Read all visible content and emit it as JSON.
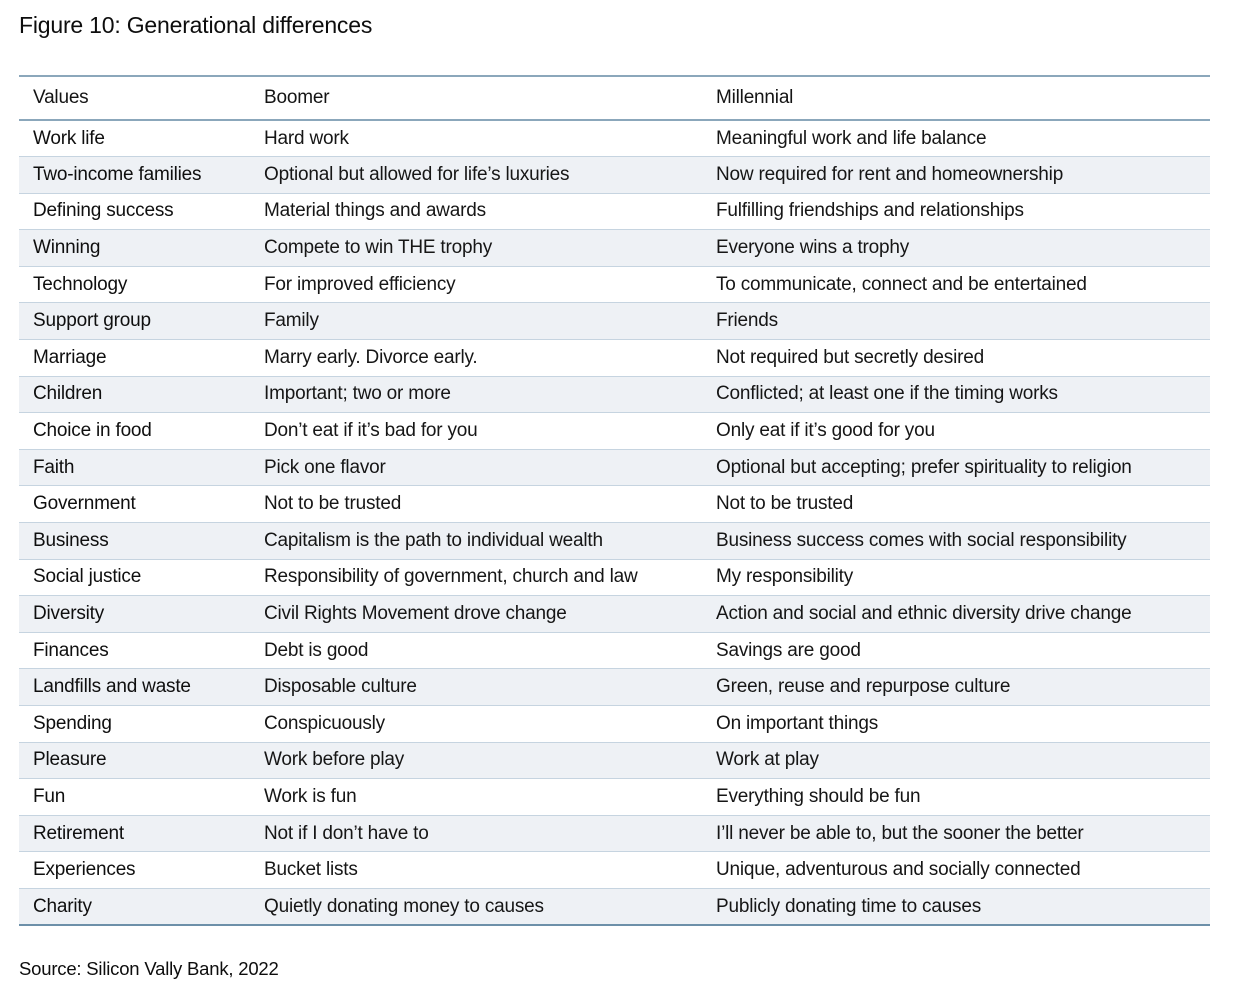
{
  "figure": {
    "title": "Figure 10: Generational differences",
    "source": "Source: Silicon Vally Bank, 2022"
  },
  "colors": {
    "row_stripe": "#eef1f5",
    "row_divider": "#c6d4e0",
    "outer_rule": "#8ba7bb",
    "bottom_rule": "#6d90a9",
    "text": "#161616"
  },
  "table": {
    "columns": [
      "Values",
      "Boomer",
      "Millennial"
    ],
    "rows": [
      {
        "value": "Work life",
        "boomer": "Hard work",
        "millennial": "Meaningful work and life balance"
      },
      {
        "value": "Two-income families",
        "boomer": "Optional but allowed for life’s luxuries",
        "millennial": "Now required for rent and homeownership"
      },
      {
        "value": "Defining success",
        "boomer": "Material things and awards",
        "millennial": "Fulfilling friendships and relationships"
      },
      {
        "value": "Winning",
        "boomer": "Compete to win THE trophy",
        "millennial": "Everyone wins a trophy"
      },
      {
        "value": "Technology",
        "boomer": "For improved efficiency",
        "millennial": "To communicate, connect and be entertained"
      },
      {
        "value": "Support group",
        "boomer": "Family",
        "millennial": "Friends"
      },
      {
        "value": "Marriage",
        "boomer": "Marry early. Divorce early.",
        "millennial": "Not required but secretly desired"
      },
      {
        "value": "Children",
        "boomer": "Important; two or more",
        "millennial": "Conflicted; at least one if the timing works"
      },
      {
        "value": "Choice in food",
        "boomer": "Don’t eat if it’s bad for you",
        "millennial": "Only eat if it’s good for you"
      },
      {
        "value": "Faith",
        "boomer": "Pick one flavor",
        "millennial": "Optional but accepting; prefer spirituality to religion"
      },
      {
        "value": "Government",
        "boomer": "Not to be trusted",
        "millennial": "Not to be trusted"
      },
      {
        "value": "Business",
        "boomer": "Capitalism is the path to individual wealth",
        "millennial": "Business success comes with social responsibility"
      },
      {
        "value": "Social justice",
        "boomer": "Responsibility of government, church and law",
        "millennial": "My responsibility"
      },
      {
        "value": "Diversity",
        "boomer": "Civil Rights Movement drove change",
        "millennial": "Action and social and ethnic diversity drive change"
      },
      {
        "value": "Finances",
        "boomer": "Debt is good",
        "millennial": "Savings are good"
      },
      {
        "value": "Landfills and waste",
        "boomer": "Disposable culture",
        "millennial": "Green, reuse and repurpose culture"
      },
      {
        "value": "Spending",
        "boomer": "Conspicuously",
        "millennial": "On important things"
      },
      {
        "value": "Pleasure",
        "boomer": "Work before play",
        "millennial": "Work at play"
      },
      {
        "value": "Fun",
        "boomer": "Work is fun",
        "millennial": "Everything should be fun"
      },
      {
        "value": "Retirement",
        "boomer": "Not if I don’t have to",
        "millennial": "I’ll never be able to, but the sooner the better"
      },
      {
        "value": "Experiences",
        "boomer": "Bucket lists",
        "millennial": "Unique, adventurous and socially connected"
      },
      {
        "value": "Charity",
        "boomer": "Quietly donating money to causes",
        "millennial": "Publicly donating time to causes"
      }
    ]
  }
}
